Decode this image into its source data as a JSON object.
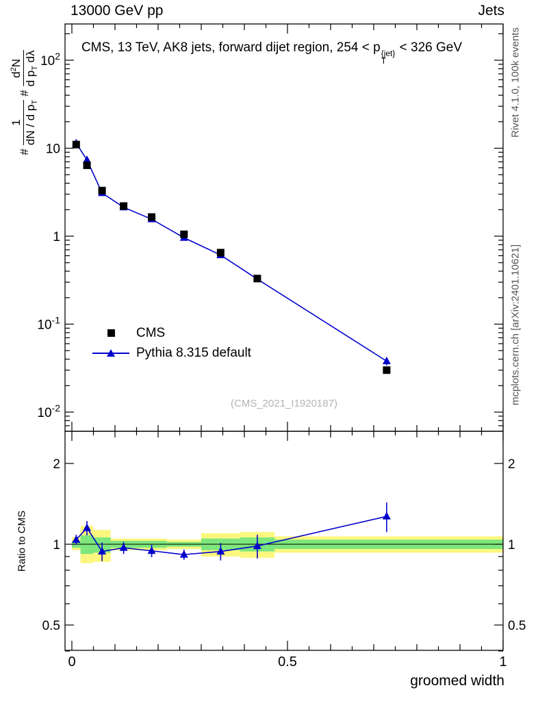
{
  "header": {
    "left": "13000 GeV pp",
    "right": "Jets"
  },
  "title": {
    "pre": "CMS, 13 TeV, AK8 jets, forward dijet region, 254 < p",
    "sup": "{jet}",
    "sub": "T",
    "post": " < 326 GeV"
  },
  "side": {
    "top": "Rivet 4.1.0, 100k events",
    "bottom": "mcplots.cern.ch [arXiv:2401.10621]"
  },
  "watermark": "(CMS_2021_I1920187)",
  "ylabel": {
    "hash1": "#",
    "f1num": "1",
    "f1den_a": "dN / d p",
    "f1den_sub": "T",
    "hash2": "#",
    "f2num_a": "d",
    "f2num_sup": "2",
    "f2num_b": "N",
    "f2den_a": "d p",
    "f2den_sub": "T",
    "f2den_b": " dλ"
  },
  "legend": {
    "items": [
      {
        "label": "CMS"
      },
      {
        "label": "Pythia 8.315 default"
      }
    ]
  },
  "chart_data": {
    "type": "line",
    "title": "CMS, 13 TeV, AK8 jets, forward dijet region, 254 < pT^{jet} < 326 GeV",
    "xlabel": "groomed width",
    "ylabel_text": "# 1/(dN/dpT) # d2N/(dpT dlambda)",
    "ratio_ylabel": "Ratio to CMS",
    "xlim": [
      0,
      1
    ],
    "main_ylog_range_exp": [
      -2.2,
      2.42
    ],
    "ratio_ylog_range": [
      0.4,
      2.6
    ],
    "x": [
      0.01,
      0.035,
      0.07,
      0.12,
      0.185,
      0.26,
      0.345,
      0.43,
      0.73
    ],
    "series": [
      {
        "name": "CMS",
        "marker": "square",
        "color": "#000000",
        "line": false,
        "values": [
          11.0,
          6.4,
          3.3,
          2.2,
          1.65,
          1.05,
          0.65,
          0.33,
          0.03
        ],
        "yerr": [
          0.5,
          0.3,
          0.15,
          0.1,
          0.07,
          0.05,
          0.03,
          0.02,
          0.002
        ]
      },
      {
        "name": "Pythia 8.315 default",
        "marker": "triangle",
        "color": "#0000cc",
        "line": true,
        "values": [
          11.4,
          7.36,
          3.1,
          2.13,
          1.56,
          0.96,
          0.61,
          0.325,
          0.038
        ],
        "yerr": [
          0.35,
          0.25,
          0.1,
          0.07,
          0.05,
          0.035,
          0.025,
          0.015,
          0.004
        ]
      }
    ],
    "ratio": {
      "ref_line": 1.0,
      "values": [
        1.04,
        1.15,
        0.94,
        0.97,
        0.945,
        0.915,
        0.94,
        0.985,
        1.27
      ],
      "yerr": [
        0.045,
        0.07,
        0.075,
        0.05,
        0.05,
        0.04,
        0.07,
        0.1,
        0.16
      ]
    },
    "bands": {
      "edges": [
        0.0,
        0.02,
        0.05,
        0.09,
        0.15,
        0.22,
        0.3,
        0.39,
        0.47,
        1.0
      ],
      "yellow": [
        [
          0.95,
          1.06
        ],
        [
          0.85,
          1.17
        ],
        [
          0.86,
          1.13
        ],
        [
          0.95,
          1.05
        ],
        [
          0.95,
          1.05
        ],
        [
          0.96,
          1.04
        ],
        [
          0.9,
          1.1
        ],
        [
          0.89,
          1.11
        ],
        [
          0.93,
          1.07
        ]
      ],
      "green": [
        [
          0.97,
          1.03
        ],
        [
          0.92,
          1.08
        ],
        [
          0.93,
          1.06
        ],
        [
          0.97,
          1.03
        ],
        [
          0.97,
          1.03
        ],
        [
          0.98,
          1.02
        ],
        [
          0.95,
          1.05
        ],
        [
          0.94,
          1.06
        ],
        [
          0.96,
          1.04
        ]
      ]
    },
    "yticks_main": [
      {
        "v": 100,
        "label": "10^2"
      },
      {
        "v": 10,
        "label": "10"
      },
      {
        "v": 1,
        "label": "1"
      },
      {
        "v": 0.1,
        "label": "10^-1"
      },
      {
        "v": 0.01,
        "label": "10^-2"
      }
    ],
    "yticks_ratio": [
      {
        "v": 0.5,
        "label": "0.5"
      },
      {
        "v": 1,
        "label": "1"
      },
      {
        "v": 2,
        "label": "2"
      }
    ],
    "yticks_ratio_minor": [
      0.4,
      0.6,
      0.7,
      0.8,
      0.9
    ],
    "xticks": [
      {
        "v": 0,
        "label": "0"
      },
      {
        "v": 0.5,
        "label": "0.5"
      },
      {
        "v": 1,
        "label": "1"
      }
    ],
    "colors": {
      "band_yellow": "#fbf77e",
      "band_green": "#7de67d",
      "mc_blue": "#0000cc",
      "data_black": "#000000"
    }
  }
}
